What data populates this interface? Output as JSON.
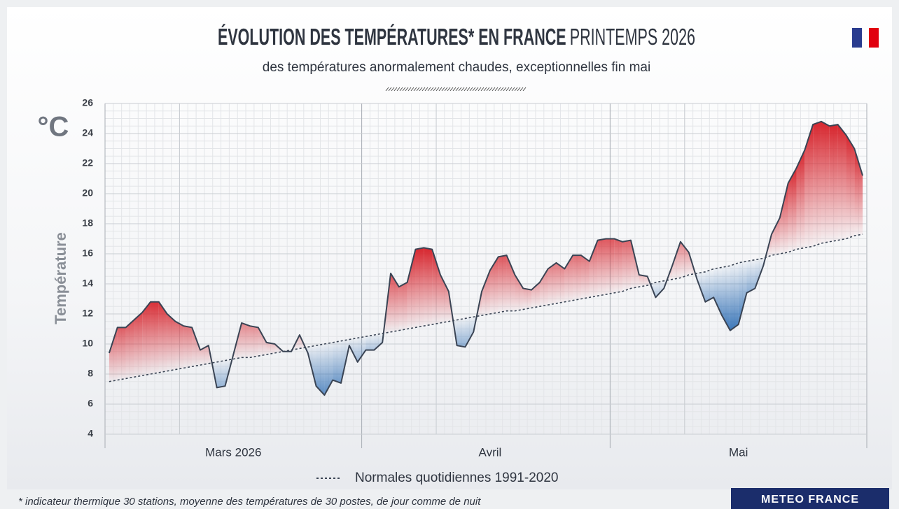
{
  "chart_data": {
    "type": "line",
    "title": "ÉVOLUTION DES TEMPÉRATURES* EN FRANCE",
    "title_season": "PRINTEMPS 2026",
    "subtitle": "des températures anormalement chaudes, exceptionnelles fin mai",
    "unit": "°C",
    "ylabel": "Température",
    "footnote": "* indicateur thermique 30 stations, moyenne des températures de 30 postes, de jour comme de nuit",
    "source": "METEO FRANCE",
    "categories": [
      null,
      null,
      null,
      null,
      null,
      null,
      null,
      null,
      null,
      null,
      null,
      null,
      null,
      null,
      null,
      "Mars 2026",
      null,
      null,
      null,
      null,
      null,
      null,
      null,
      null,
      null,
      null,
      null,
      null,
      null,
      null,
      null,
      null,
      null,
      null,
      null,
      null,
      null,
      null,
      null,
      null,
      null,
      null,
      null,
      null,
      null,
      null,
      "Avril",
      null,
      null,
      null,
      null,
      null,
      null,
      null,
      null,
      null,
      null,
      null,
      null,
      null,
      null,
      null,
      null,
      null,
      null,
      null,
      null,
      null,
      null,
      null,
      null,
      null,
      null,
      null,
      null,
      null,
      "Mai",
      null,
      null,
      null,
      null,
      null,
      null,
      null,
      null,
      null,
      null,
      null,
      null,
      null,
      null,
      null
    ],
    "series": [
      {
        "color": "#3a4454",
        "style": "solid",
        "values": [
          9.4,
          11.1,
          11.1,
          11.6,
          12.1,
          12.8,
          12.8,
          12.0,
          11.5,
          11.2,
          11.1,
          9.6,
          9.9,
          7.1,
          7.2,
          9.3,
          11.4,
          11.2,
          11.1,
          10.1,
          10.0,
          9.5,
          9.5,
          10.6,
          9.4,
          7.2,
          6.6,
          7.6,
          7.4,
          9.9,
          8.8,
          9.6,
          9.6,
          10.1,
          14.7,
          13.8,
          14.1,
          16.3,
          16.4,
          16.3,
          14.6,
          13.5,
          9.9,
          9.8,
          10.8,
          13.5,
          14.9,
          15.8,
          15.9,
          14.6,
          13.7,
          13.6,
          14.1,
          15.0,
          15.4,
          15.0,
          15.9,
          15.9,
          15.5,
          16.9,
          17.0,
          17.0,
          16.8,
          16.9,
          14.6,
          14.5,
          13.1,
          13.7,
          15.2,
          16.8,
          16.1,
          14.3,
          12.8,
          13.1,
          11.9,
          10.9,
          11.3,
          13.4,
          13.7,
          15.2,
          17.3,
          18.4,
          20.7,
          21.7,
          22.9,
          24.6,
          24.8,
          24.5,
          24.6,
          23.9,
          23.0,
          21.2
        ]
      },
      {
        "name": "Normales quotidiennes 1991-2020",
        "color": "#3a4454",
        "style": "dashed",
        "values": [
          7.5,
          7.6,
          7.7,
          7.8,
          7.9,
          8.0,
          8.1,
          8.2,
          8.3,
          8.4,
          8.5,
          8.6,
          8.7,
          8.8,
          8.9,
          9.0,
          9.1,
          9.1,
          9.2,
          9.3,
          9.4,
          9.5,
          9.6,
          9.7,
          9.8,
          9.9,
          10.0,
          10.1,
          10.2,
          10.3,
          10.4,
          10.5,
          10.6,
          10.7,
          10.8,
          10.9,
          11.0,
          11.1,
          11.2,
          11.3,
          11.4,
          11.5,
          11.6,
          11.7,
          11.8,
          11.9,
          12.0,
          12.1,
          12.2,
          12.2,
          12.3,
          12.4,
          12.5,
          12.6,
          12.7,
          12.8,
          12.9,
          13.0,
          13.1,
          13.2,
          13.3,
          13.4,
          13.5,
          13.7,
          13.8,
          13.9,
          14.1,
          14.2,
          14.3,
          14.4,
          14.6,
          14.7,
          14.8,
          15.0,
          15.1,
          15.2,
          15.4,
          15.5,
          15.6,
          15.7,
          15.9,
          16.0,
          16.1,
          16.3,
          16.4,
          16.5,
          16.7,
          16.8,
          16.9,
          17.0,
          17.2,
          17.3
        ]
      }
    ],
    "above_color": "#d7262e",
    "below_color": "#1f64b0",
    "ylim": [
      4,
      26
    ],
    "yticks": [
      4,
      6,
      8,
      10,
      12,
      14,
      16,
      18,
      20,
      22,
      24,
      26
    ],
    "grid": true
  }
}
